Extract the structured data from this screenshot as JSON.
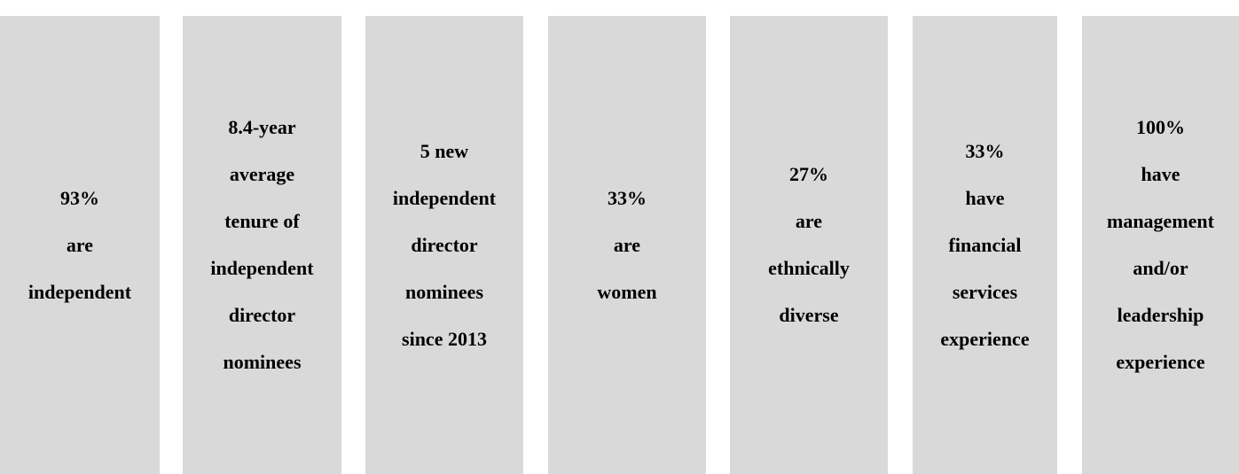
{
  "cards": [
    {
      "lines": [
        "93%",
        "are",
        "independent"
      ]
    },
    {
      "lines": [
        "8.4-year",
        "average",
        "tenure of",
        "independent",
        "director",
        "nominees"
      ]
    },
    {
      "lines": [
        "5 new",
        "independent",
        "director",
        "nominees",
        "since 2013"
      ]
    },
    {
      "lines": [
        "33%",
        "are",
        "women"
      ]
    },
    {
      "lines": [
        "27%",
        "are",
        "ethnically",
        "diverse"
      ]
    },
    {
      "lines": [
        "33%",
        "have",
        "financial",
        "services",
        "experience"
      ]
    },
    {
      "lines": [
        "100%",
        "have",
        "management",
        "and/or",
        "leadership",
        "experience"
      ]
    }
  ]
}
